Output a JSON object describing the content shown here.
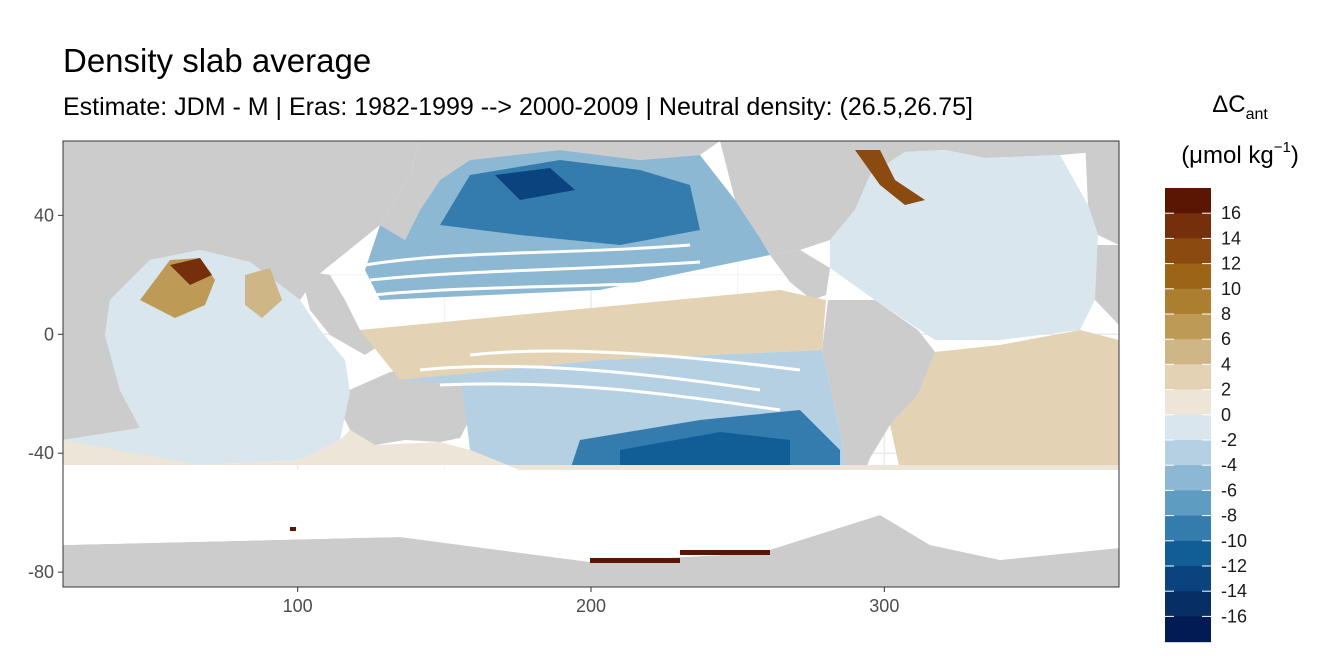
{
  "title": "Density slab average",
  "subtitle": "Estimate: JDM - M | Eras: 1982-1999 --> 2000-2009 | Neutral density: (26.5,26.75]",
  "chart_data": {
    "type": "heatmap",
    "title": "Density slab average",
    "subtitle": "Estimate: JDM - M | Eras: 1982-1999 --> 2000-2009 | Neutral density: (26.5,26.75]",
    "xlim": [
      20,
      380
    ],
    "ylim": [
      -85,
      65
    ],
    "x_ticks": [
      100,
      200,
      300
    ],
    "y_ticks": [
      40,
      0,
      -40,
      -80
    ],
    "grid": true,
    "colorbar": {
      "title_main": "ΔC",
      "title_sub": "ant",
      "unit_pre": "(μmol kg",
      "unit_sup": "−1",
      "unit_post": ")",
      "position": "right",
      "bins": [
        {
          "label": "16",
          "color": "#5a1503"
        },
        {
          "label": "14",
          "color": "#75300b"
        },
        {
          "label": "12",
          "color": "#8b4a0f"
        },
        {
          "label": "10",
          "color": "#9c6416"
        },
        {
          "label": "8",
          "color": "#ab7f2f"
        },
        {
          "label": "6",
          "color": "#bd9b56"
        },
        {
          "label": "4",
          "color": "#cfb687"
        },
        {
          "label": "2",
          "color": "#e3d2b3"
        },
        {
          "label": "0",
          "color": "#ede5d8"
        },
        {
          "label": "-2",
          "color": "#d9e6ee"
        },
        {
          "label": "-4",
          "color": "#b4d0e2"
        },
        {
          "label": "-6",
          "color": "#8db8d4"
        },
        {
          "label": "-8",
          "color": "#5e9cc2"
        },
        {
          "label": "-10",
          "color": "#347cae"
        },
        {
          "label": "-12",
          "color": "#115e96"
        },
        {
          "label": "-14",
          "color": "#0a437d"
        },
        {
          "label": "-16",
          "color": "#072f66"
        },
        {
          "label": "",
          "color": "#021b55"
        }
      ]
    },
    "land_color": "#cccccc",
    "no_data_color": "#ffffff"
  }
}
